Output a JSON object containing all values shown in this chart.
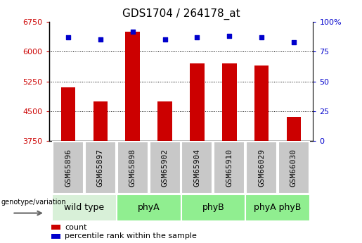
{
  "title": "GDS1704 / 264178_at",
  "samples": [
    "GSM65896",
    "GSM65897",
    "GSM65898",
    "GSM65902",
    "GSM65904",
    "GSM65910",
    "GSM66029",
    "GSM66030"
  ],
  "counts": [
    5100,
    4750,
    6500,
    4750,
    5700,
    5700,
    5650,
    4350
  ],
  "percentiles": [
    87,
    85,
    92,
    85,
    87,
    88,
    87,
    83
  ],
  "groups": [
    {
      "label": "wild type",
      "start": 0,
      "end": 2,
      "color": "#d8f0d8"
    },
    {
      "label": "phyA",
      "start": 2,
      "end": 4,
      "color": "#90ee90"
    },
    {
      "label": "phyB",
      "start": 4,
      "end": 6,
      "color": "#90ee90"
    },
    {
      "label": "phyA phyB",
      "start": 6,
      "end": 8,
      "color": "#90ee90"
    }
  ],
  "bar_color": "#cc0000",
  "dot_color": "#0000cc",
  "ymin": 3750,
  "ymax": 6750,
  "yticks": [
    3750,
    4500,
    5250,
    6000,
    6750
  ],
  "y2min": 0,
  "y2max": 100,
  "y2ticks": [
    0,
    25,
    50,
    75,
    100
  ],
  "y2ticklabels": [
    "0",
    "25",
    "50",
    "75",
    "100%"
  ],
  "grid_color": "#000000",
  "bar_color_legend": "#cc0000",
  "dot_color_legend": "#0000cc",
  "ylabel_left_color": "#cc0000",
  "ylabel_right_color": "#0000cc",
  "title_fontsize": 11,
  "tick_fontsize": 8,
  "sample_fontsize": 8,
  "group_label_fontsize": 9,
  "legend_fontsize": 8
}
